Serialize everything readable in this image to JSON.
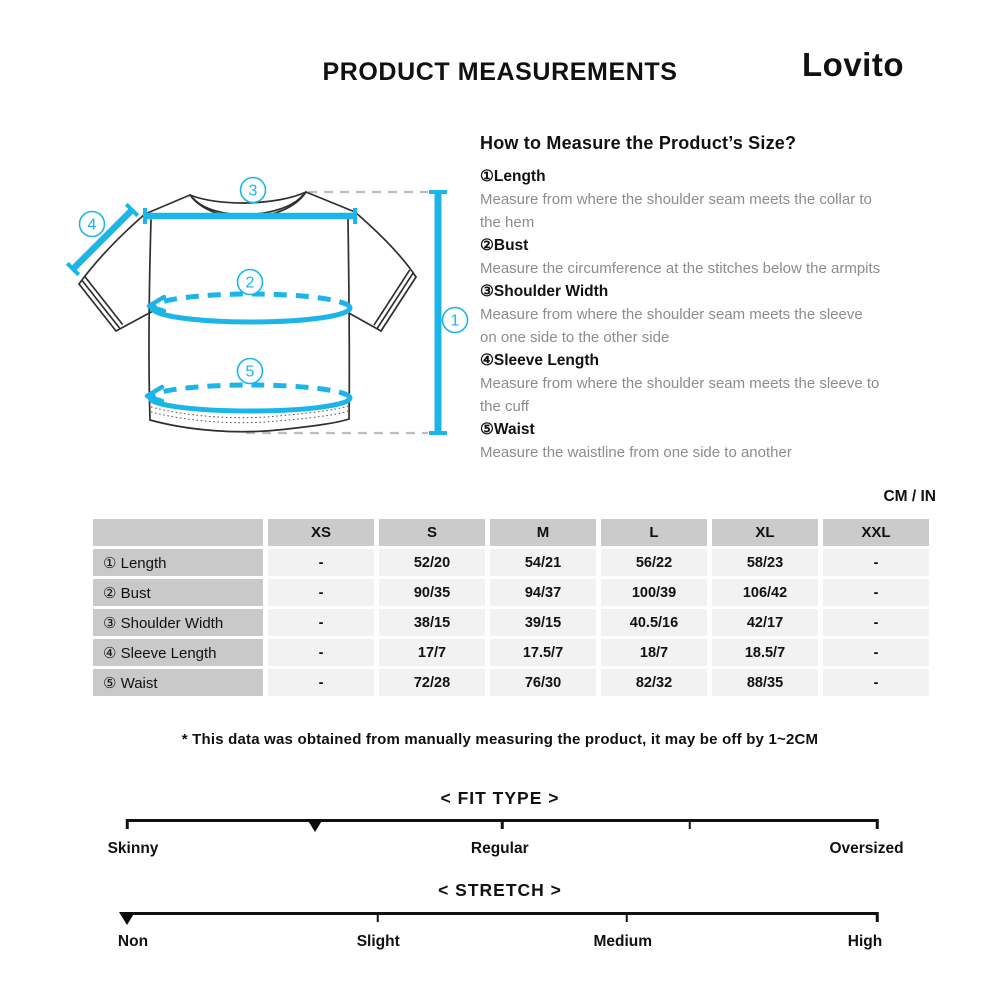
{
  "header": {
    "title": "PRODUCT MEASUREMENTS",
    "brand": "Lovito"
  },
  "diagram": {
    "callouts": {
      "c1": "1",
      "c2": "2",
      "c3": "3",
      "c4": "4",
      "c5": "5"
    }
  },
  "how_to": {
    "heading": "How to Measure the Product’s Size?",
    "items": [
      {
        "label": "①Length",
        "desc": "Measure from where the shoulder seam meets the collar to\nthe hem"
      },
      {
        "label": "②Bust",
        "desc": "Measure the circumference at the stitches below the armpits"
      },
      {
        "label": "③Shoulder Width",
        "desc": "Measure from where the shoulder seam meets the sleeve\non one side to the other side"
      },
      {
        "label": "④Sleeve Length",
        "desc": "Measure from where the shoulder seam meets the sleeve to\nthe cuff"
      },
      {
        "label": "⑤Waist",
        "desc": "Measure the waistline from one side to another"
      }
    ]
  },
  "table": {
    "unit_label": "CM / IN",
    "columns": [
      "",
      "XS",
      "S",
      "M",
      "L",
      "XL",
      "XXL"
    ],
    "rows": [
      {
        "label": "① Length",
        "values": [
          "-",
          "52/20",
          "54/21",
          "56/22",
          "58/23",
          "-"
        ]
      },
      {
        "label": "② Bust",
        "values": [
          "-",
          "90/35",
          "94/37",
          "100/39",
          "106/42",
          "-"
        ]
      },
      {
        "label": "③ Shoulder Width",
        "values": [
          "-",
          "38/15",
          "39/15",
          "40.5/16",
          "42/17",
          "-"
        ]
      },
      {
        "label": "④ Sleeve Length",
        "values": [
          "-",
          "17/7",
          "17.5/7",
          "18/7",
          "18.5/7",
          "-"
        ]
      },
      {
        "label": "⑤ Waist",
        "values": [
          "-",
          "72/28",
          "76/30",
          "82/32",
          "88/35",
          "-"
        ]
      }
    ]
  },
  "footnote": "* This data was obtained from manually measuring the product, it may be off by 1~2CM",
  "scales": {
    "fit_type": {
      "title": "< FIT TYPE >",
      "ticks": [
        0,
        50,
        75,
        100
      ],
      "marker_percent": 25,
      "labels": [
        {
          "text": "Skinny",
          "pos": 0.8
        },
        {
          "text": "Regular",
          "pos": 49.7
        },
        {
          "text": "Oversized",
          "pos": 98.6
        }
      ]
    },
    "stretch": {
      "title": "< STRETCH >",
      "ticks": [
        0,
        33.4,
        66.6,
        100
      ],
      "marker_percent": 0,
      "labels": [
        {
          "text": "Non",
          "pos": 0.8
        },
        {
          "text": "Slight",
          "pos": 33.5
        },
        {
          "text": "Medium",
          "pos": 66.1
        },
        {
          "text": "High",
          "pos": 98.4
        }
      ]
    }
  },
  "colors": {
    "accent_cyan": "#1CB5EA",
    "table_header_bg": "#cbcbcb",
    "table_cell_bg": "#f2f2f2",
    "description_gray": "#8c8c8c"
  }
}
